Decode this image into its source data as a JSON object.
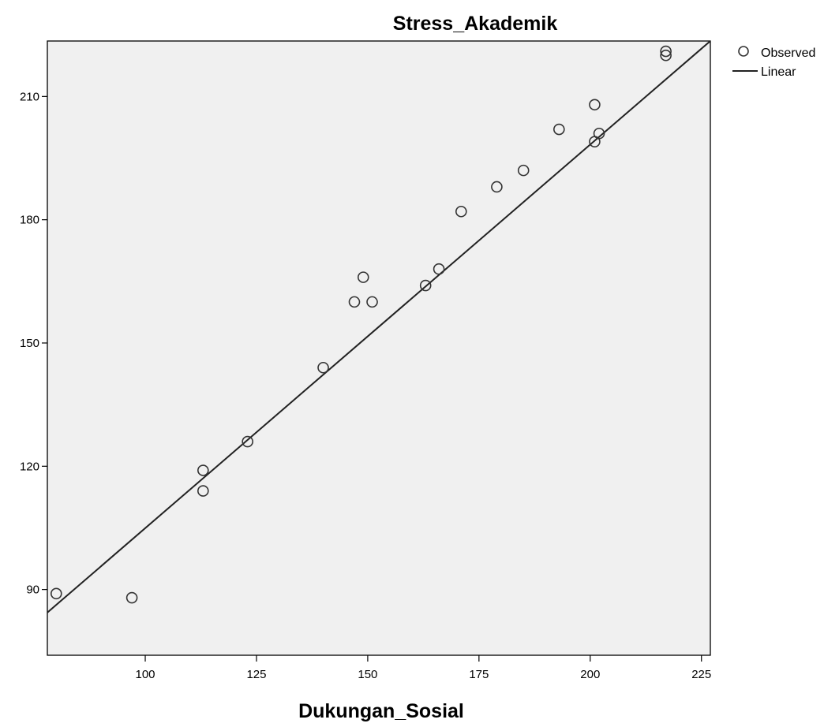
{
  "chart_data": {
    "type": "scatter",
    "title": "Stress_Akademik",
    "xlabel": "Dukungan_Sosial",
    "ylabel": "",
    "xlim": [
      78,
      227
    ],
    "ylim": [
      74,
      223.5
    ],
    "xticks": [
      100,
      125,
      150,
      175,
      200,
      225
    ],
    "yticks": [
      90,
      120,
      150,
      180,
      210
    ],
    "grid": false,
    "legend_placement": "top-right, outside plot",
    "legend": [
      "Observed",
      "Linear"
    ],
    "series": [
      {
        "name": "Observed",
        "kind": "points",
        "marker": "open-circle",
        "points": [
          [
            80,
            89
          ],
          [
            97,
            88
          ],
          [
            113,
            119
          ],
          [
            113,
            114
          ],
          [
            123,
            126
          ],
          [
            140,
            144
          ],
          [
            147,
            160
          ],
          [
            149,
            166
          ],
          [
            151,
            160
          ],
          [
            163,
            164
          ],
          [
            166,
            168
          ],
          [
            171,
            182
          ],
          [
            179,
            188
          ],
          [
            185,
            192
          ],
          [
            193,
            202
          ],
          [
            201,
            208
          ],
          [
            201,
            199
          ],
          [
            202,
            201
          ],
          [
            217,
            221
          ],
          [
            217,
            220
          ]
        ]
      },
      {
        "name": "Linear",
        "kind": "line",
        "points": [
          [
            78,
            84.4
          ],
          [
            227,
            223.5
          ]
        ]
      }
    ],
    "colors": {
      "plot_background": "#f0f0f0",
      "marker_stroke": "#333333",
      "line": "#222222",
      "frame": "#000000"
    }
  }
}
